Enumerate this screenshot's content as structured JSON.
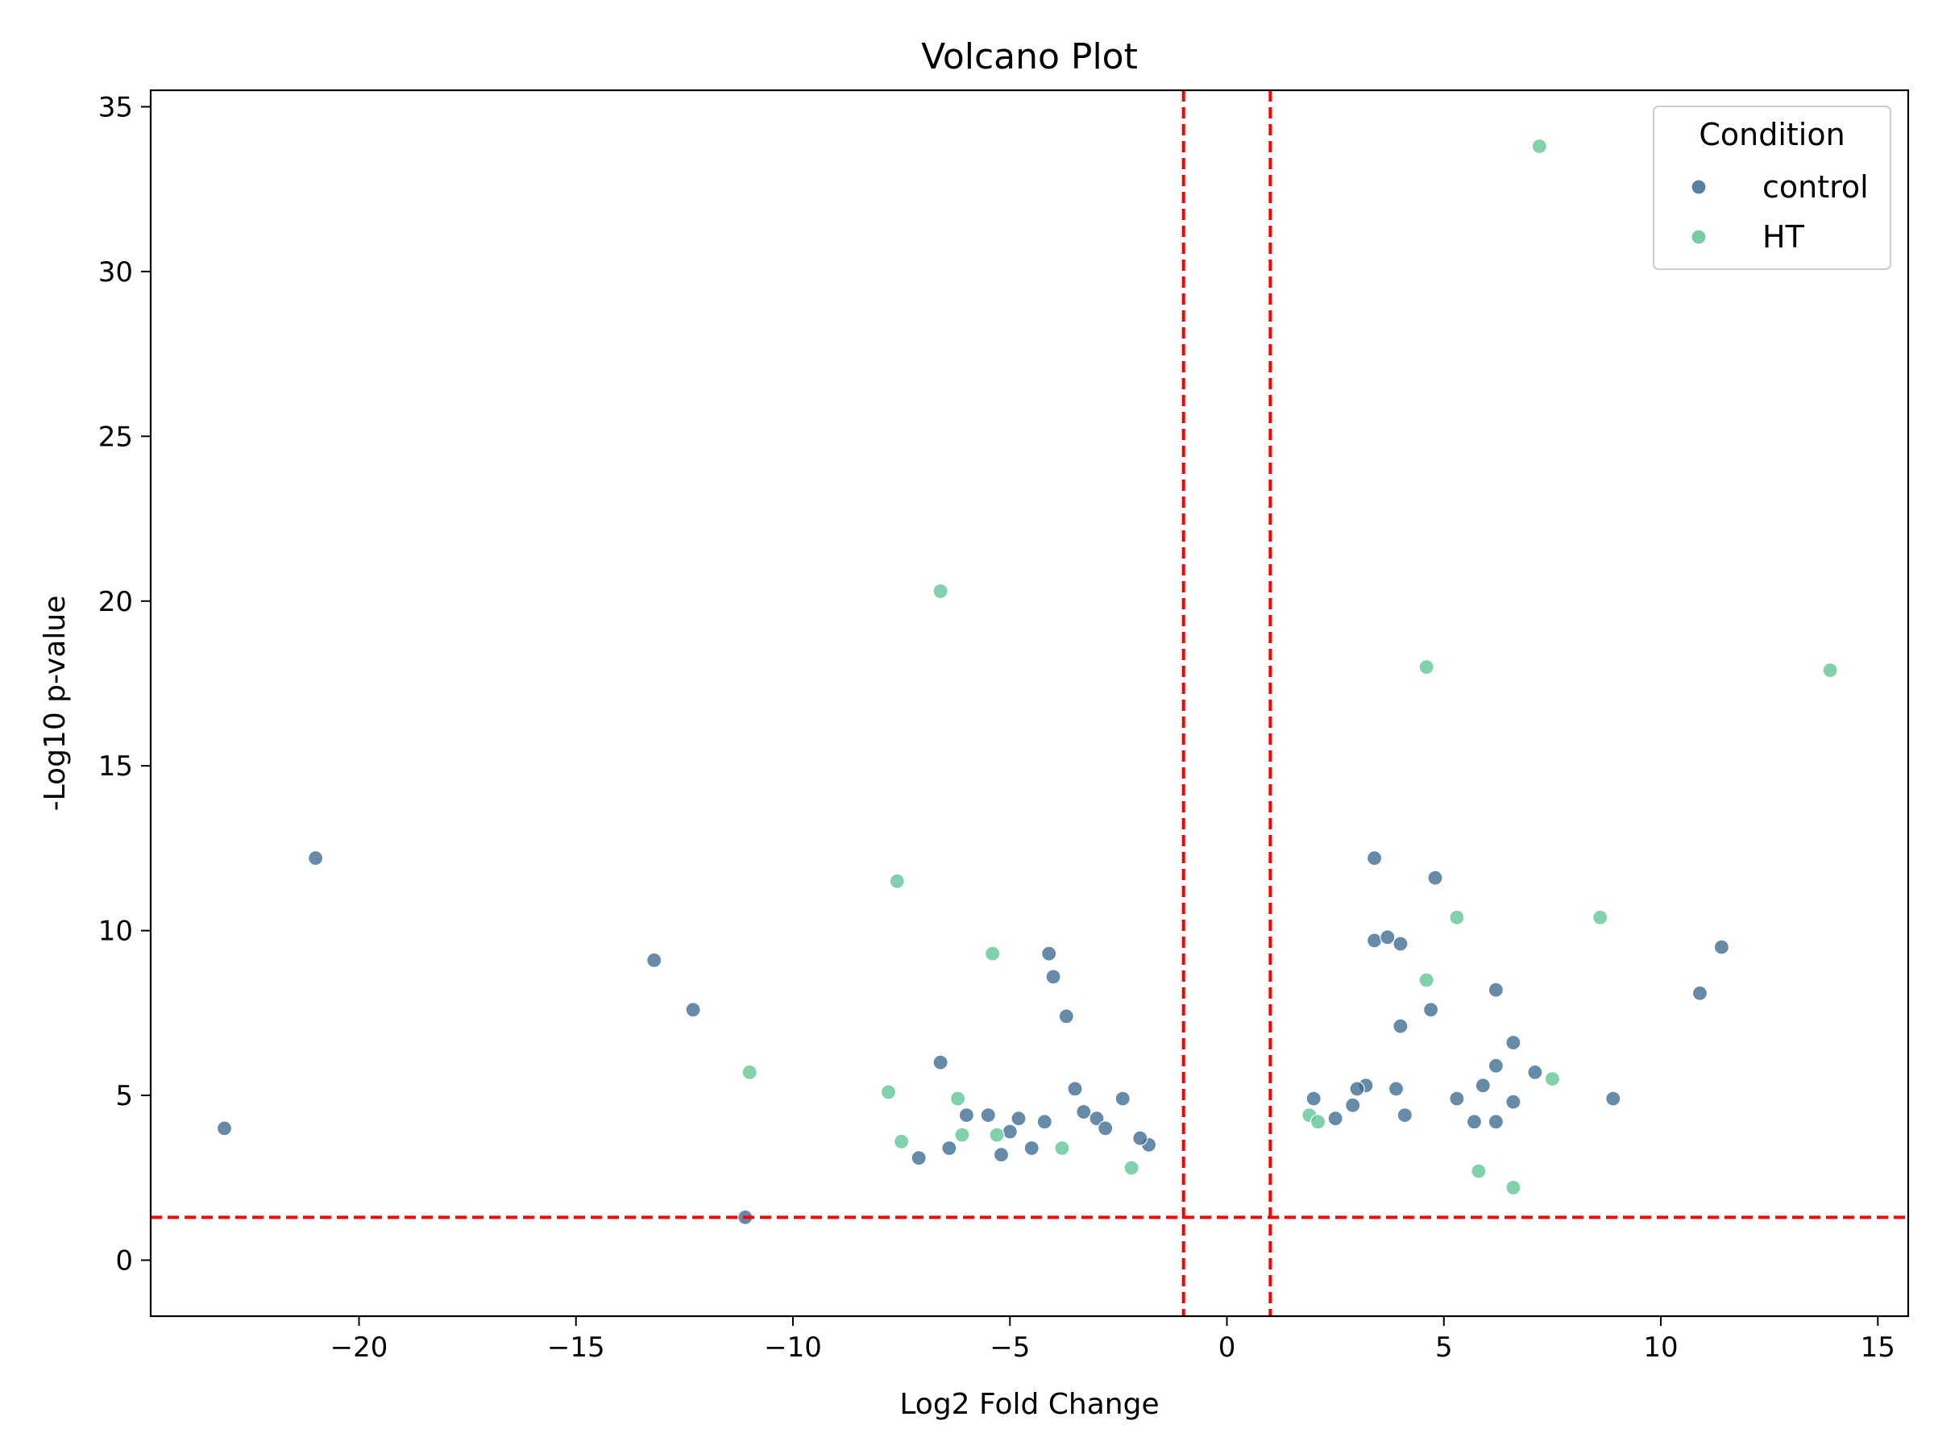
{
  "chart_data": {
    "type": "scatter",
    "title": "Volcano Plot",
    "xlabel": "Log2 Fold Change",
    "ylabel": "-Log10 p-value",
    "xlim": [
      -24.8,
      15.7
    ],
    "ylim": [
      -1.7,
      35.5
    ],
    "xticks": [
      -20,
      -15,
      -10,
      -5,
      0,
      5,
      10,
      15
    ],
    "xtick_labels": [
      "−20",
      "−15",
      "−10",
      "−5",
      "0",
      "5",
      "10",
      "15"
    ],
    "yticks": [
      0,
      5,
      10,
      15,
      20,
      25,
      30,
      35
    ],
    "ytick_labels": [
      "0",
      "5",
      "10",
      "15",
      "20",
      "25",
      "30",
      "35"
    ],
    "grid": false,
    "legend": {
      "title": "Condition",
      "placement": "top-right",
      "entries": [
        "control",
        "HT"
      ]
    },
    "thresholds": {
      "color": "#ff0000",
      "x": [
        -1,
        1
      ],
      "y": [
        1.3
      ]
    },
    "series": [
      {
        "name": "control",
        "color": "#3b6a8f",
        "x": [
          -23.1,
          -21.0,
          -13.2,
          -12.3,
          -11.1,
          -6.6,
          -4.1,
          -4.0,
          -3.7,
          -3.5,
          -2.4,
          -4.8,
          -5.5,
          -6.0,
          -3.0,
          -2.8,
          -1.8,
          -5.2,
          -4.5,
          -2.0,
          3.4,
          4.8,
          3.4,
          3.7,
          4.0,
          4.0,
          6.2,
          4.7,
          6.6,
          7.1,
          8.9,
          10.9,
          11.4,
          3.2,
          3.0,
          3.9,
          5.3,
          5.9,
          6.2,
          6.6,
          6.2,
          5.7,
          4.1,
          2.0,
          2.5,
          2.9,
          -6.4,
          -7.1,
          -5.0,
          -4.2,
          -3.3
        ],
        "y": [
          4.0,
          12.2,
          9.1,
          7.6,
          1.3,
          6.0,
          9.3,
          8.6,
          7.4,
          5.2,
          4.9,
          4.3,
          4.4,
          4.4,
          4.3,
          4.0,
          3.5,
          3.2,
          3.4,
          3.7,
          12.2,
          11.6,
          9.7,
          9.8,
          9.6,
          7.1,
          8.2,
          7.6,
          6.6,
          5.7,
          4.9,
          8.1,
          9.5,
          5.3,
          5.2,
          5.2,
          4.9,
          5.3,
          5.9,
          4.8,
          4.2,
          4.2,
          4.4,
          4.9,
          4.3,
          4.7,
          3.4,
          3.1,
          3.9,
          4.2,
          4.5
        ]
      },
      {
        "name": "HT",
        "color": "#5ec492",
        "x": [
          7.2,
          -6.6,
          4.6,
          13.9,
          -7.6,
          -5.4,
          5.3,
          8.6,
          4.6,
          -11.0,
          -7.8,
          -6.2,
          -5.3,
          -6.1,
          -7.5,
          7.5,
          1.9,
          2.1,
          -3.8,
          -2.2,
          6.6,
          5.8
        ],
        "y": [
          33.8,
          20.3,
          18.0,
          17.9,
          11.5,
          9.3,
          10.4,
          10.4,
          8.5,
          5.7,
          5.1,
          4.9,
          3.8,
          3.8,
          3.6,
          5.5,
          4.4,
          4.2,
          3.4,
          2.8,
          2.2,
          2.7
        ]
      }
    ],
    "background_note_free": true
  }
}
